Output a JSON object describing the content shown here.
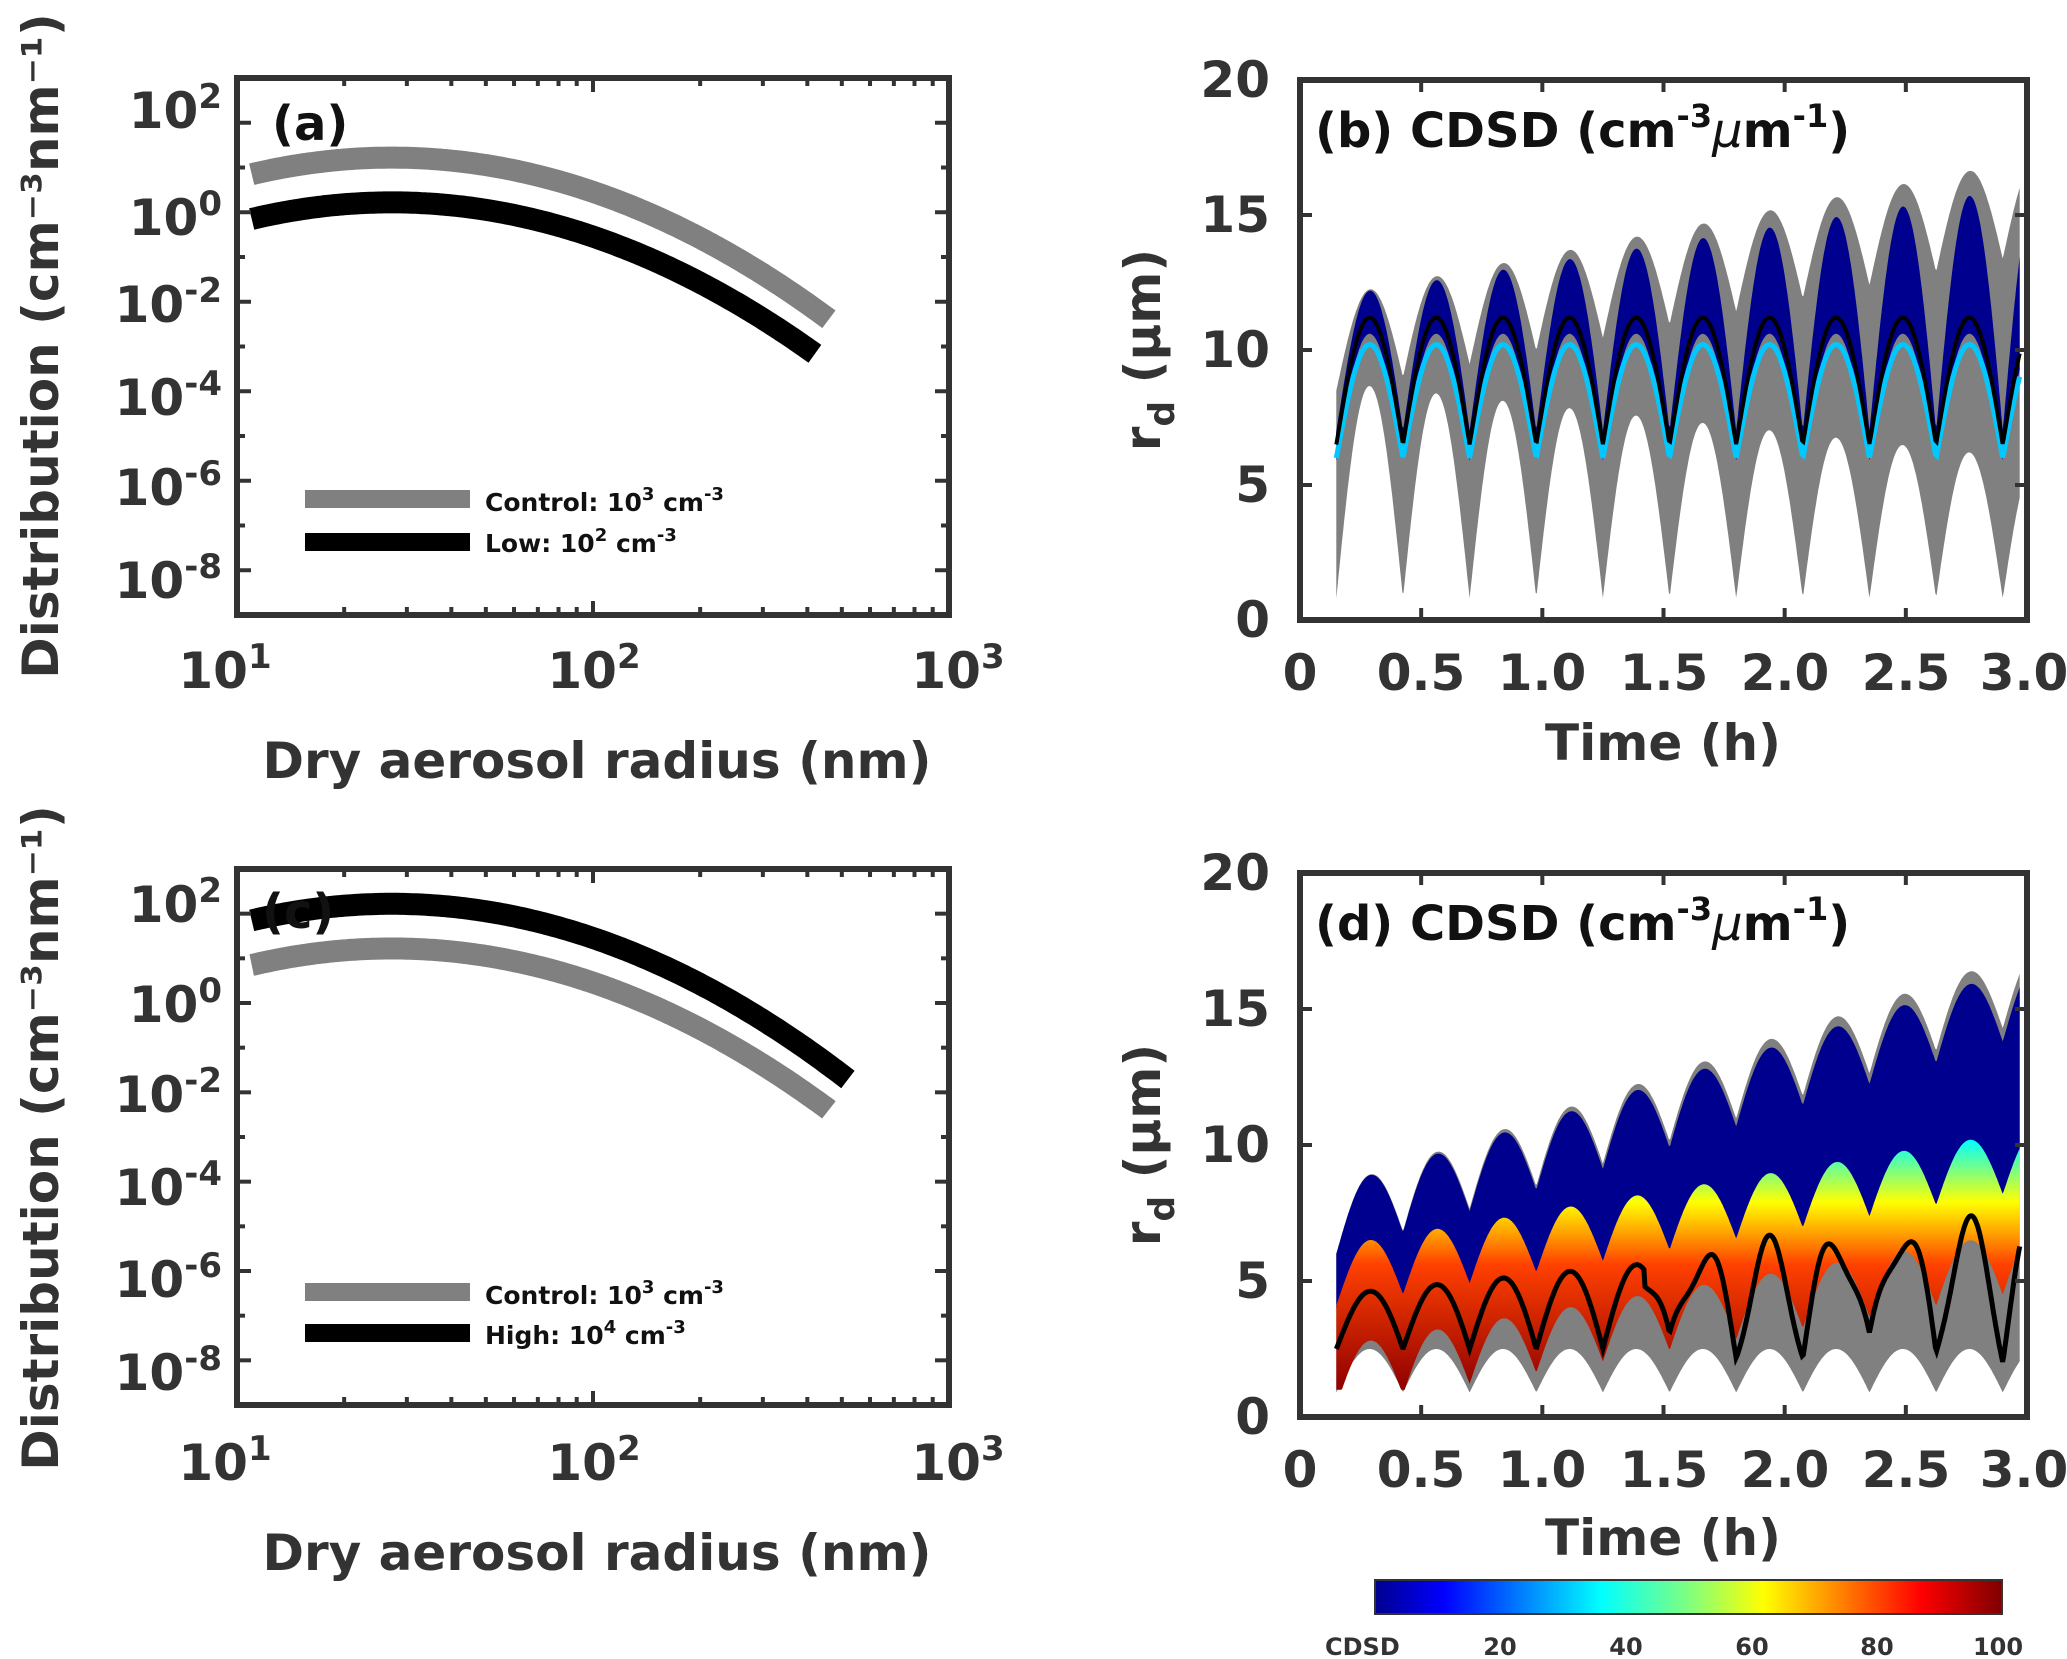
{
  "chart_data": [
    {
      "id": "a",
      "type": "line",
      "title": "(a)",
      "xlabel": "Dry aerosol radius (nm)",
      "ylabel": "Distribution (cm⁻³nm⁻¹)",
      "xscale": "log",
      "yscale": "log",
      "xlim": [
        10,
        1000
      ],
      "ylim": [
        1e-09,
        1000
      ],
      "xticks": [
        {
          "base": "10",
          "exp": "1"
        },
        {
          "base": "10",
          "exp": "2"
        },
        {
          "base": "10",
          "exp": "3"
        }
      ],
      "yticks": [
        {
          "base": "10",
          "exp": "2"
        },
        {
          "base": "10",
          "exp": "0"
        },
        {
          "base": "10",
          "exp": "-2"
        },
        {
          "base": "10",
          "exp": "-4"
        },
        {
          "base": "10",
          "exp": "-6"
        },
        {
          "base": "10",
          "exp": "-8"
        }
      ],
      "legend_position": "lower-left",
      "series": [
        {
          "name": "Control",
          "label_text": "Control: 10",
          "label_exp": "3",
          "label_unit": " cm",
          "label_unit_exp": "-3",
          "color": "#808080",
          "N": 1000,
          "mode_radius_nm": 44,
          "sigma_g": 2.0,
          "r_range": [
            11,
            460
          ]
        },
        {
          "name": "Low",
          "label_text": "Low: 10",
          "label_exp": "2",
          "label_unit": " cm",
          "label_unit_exp": "-3",
          "color": "#000000",
          "N": 100,
          "mode_radius_nm": 44,
          "sigma_g": 2.0,
          "r_range": [
            11,
            420
          ]
        }
      ]
    },
    {
      "id": "b",
      "type": "heatmap",
      "title": "(b) CDSD (cm",
      "title_exp1": "-3",
      "title_mu": "μ",
      "title_mid": "m",
      "title_exp2": "-1",
      "title_end": ")",
      "xlabel": "Time (h)",
      "ylabel_main": "r",
      "ylabel_sub": "d",
      "ylabel_unit": " (μm)",
      "xlim": [
        0,
        3.0
      ],
      "ylim": [
        0,
        20
      ],
      "xticks": [
        "0",
        "0.5",
        "1.0",
        "1.5",
        "2.0",
        "2.5",
        "3.0"
      ],
      "yticks": [
        "0",
        "5",
        "10",
        "15",
        "20"
      ],
      "cycle_period_h": 0.275,
      "start_h": 0.15,
      "envelope": {
        "gray_top": [
          12.0,
          17.0
        ],
        "gray_bottom_min": 1.0,
        "gray_bottom_peak": [
          8.8,
          6.0
        ],
        "blue_top": [
          12.0,
          16.0
        ]
      },
      "mean_radius_peak_um": 11.2,
      "mean_radius_trough_um": 6.5
    },
    {
      "id": "c",
      "type": "line",
      "title": "(c)",
      "xlabel": "Dry aerosol radius (nm)",
      "ylabel": "Distribution (cm⁻³nm⁻¹)",
      "xscale": "log",
      "yscale": "log",
      "xlim": [
        10,
        1000
      ],
      "ylim": [
        1e-09,
        1000
      ],
      "xticks": [
        {
          "base": "10",
          "exp": "1"
        },
        {
          "base": "10",
          "exp": "2"
        },
        {
          "base": "10",
          "exp": "3"
        }
      ],
      "yticks": [
        {
          "base": "10",
          "exp": "2"
        },
        {
          "base": "10",
          "exp": "0"
        },
        {
          "base": "10",
          "exp": "-2"
        },
        {
          "base": "10",
          "exp": "-4"
        },
        {
          "base": "10",
          "exp": "-6"
        },
        {
          "base": "10",
          "exp": "-8"
        }
      ],
      "legend_position": "lower-left",
      "series": [
        {
          "name": "Control",
          "label_text": "Control: 10",
          "label_exp": "3",
          "label_unit": " cm",
          "label_unit_exp": "-3",
          "color": "#808080",
          "N": 1000,
          "mode_radius_nm": 44,
          "sigma_g": 2.0,
          "r_range": [
            11,
            460
          ]
        },
        {
          "name": "High",
          "label_text": "High: 10",
          "label_exp": "4",
          "label_unit": " cm",
          "label_unit_exp": "-3",
          "color": "#000000",
          "N": 10000,
          "mode_radius_nm": 44,
          "sigma_g": 2.0,
          "r_range": [
            11,
            520
          ]
        }
      ]
    },
    {
      "id": "d",
      "type": "heatmap",
      "title": "(d) CDSD (cm",
      "title_exp1": "-3",
      "title_mu": "μ",
      "title_mid": "m",
      "title_exp2": "-1",
      "title_end": ")",
      "xlabel": "Time (h)",
      "ylabel_main": "r",
      "ylabel_sub": "d",
      "ylabel_unit": " (μm)",
      "xlim": [
        0,
        3.0
      ],
      "ylim": [
        0,
        20
      ],
      "xticks": [
        "0",
        "0.5",
        "1.0",
        "1.5",
        "2.0",
        "2.5",
        "3.0"
      ],
      "yticks": [
        "0",
        "5",
        "10",
        "15",
        "20"
      ],
      "cycle_period_h": 0.275,
      "start_h": 0.15,
      "envelope": {
        "gray_top": [
          8.5,
          17.0
        ],
        "blue_top": [
          8.5,
          16.5
        ],
        "ridge_peak": [
          5.8,
          10.0
        ]
      },
      "mean_radius_peak_um": [
        4.5,
        7.0
      ],
      "mean_radius_trough_um": 2.5
    }
  ],
  "colorbar": {
    "label": "CDSD",
    "ticks": [
      "20",
      "40",
      "60",
      "80",
      "100"
    ],
    "range": [
      0,
      100
    ],
    "colormap": "jet"
  },
  "colors": {
    "axis": "#333333",
    "gray_envelope": "#808080",
    "blue_fill": "#00008f"
  }
}
